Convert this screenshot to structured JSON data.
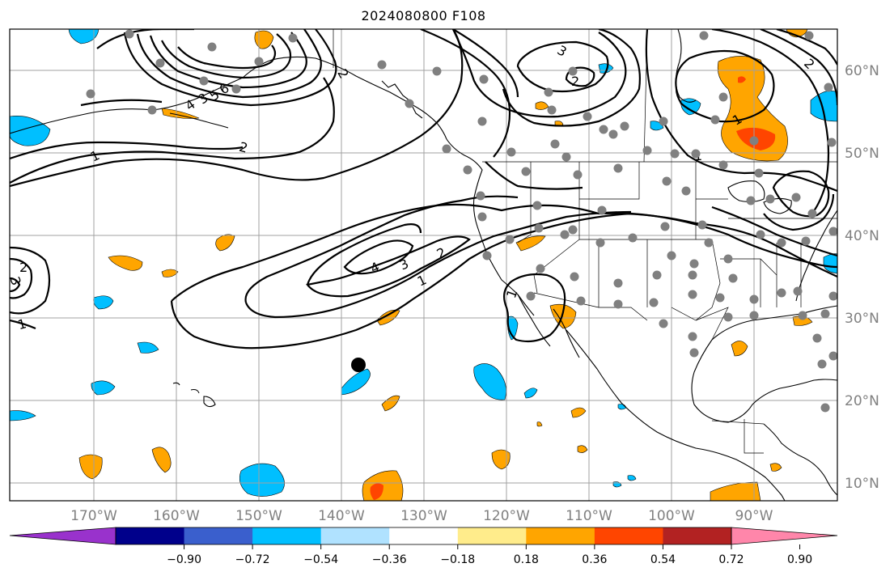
{
  "title": "2024080800 F108",
  "lon_labels": [
    "170°W",
    "160°W",
    "150°W",
    "140°W",
    "130°W",
    "120°W",
    "110°W",
    "100°W",
    "90°W"
  ],
  "lat_labels": [
    "60°N",
    "50°N",
    "40°N",
    "30°N",
    "20°N",
    "10°N"
  ],
  "colorbar": {
    "ticks": [
      "−0.90",
      "−0.72",
      "−0.54",
      "−0.36",
      "−0.18",
      "0.18",
      "0.36",
      "0.54",
      "0.72",
      "0.90"
    ],
    "colors": [
      "#9932cc",
      "#00008b",
      "#3a5fcd",
      "#00bfff",
      "#b0e2ff",
      "#ffffff",
      "#ffec8b",
      "#ffa500",
      "#ff4500",
      "#b22222",
      "#ff86aa"
    ]
  },
  "contour_labels": [
    "1",
    "2",
    "3",
    "4",
    "1",
    "2",
    "3",
    "1",
    "2",
    "3",
    "4",
    "5",
    "6",
    "2",
    "1",
    "3",
    "2",
    "1",
    "1",
    "2"
  ],
  "colors": {
    "station": "#808080",
    "grid": "#a0a0a0",
    "coast": "#000000",
    "contour": "#000000"
  }
}
